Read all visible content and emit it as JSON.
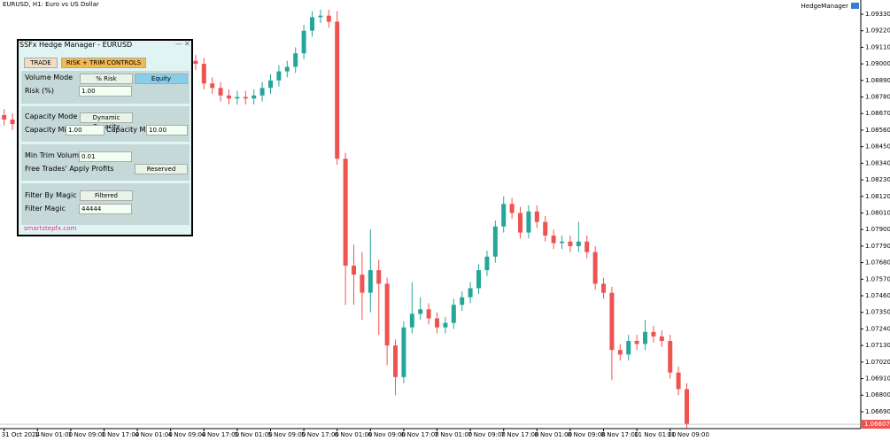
{
  "header": {
    "symbol_info": "EURUSD, H1:  Euro vs US Dollar",
    "expert": "HedgeManager"
  },
  "chart_data": {
    "type": "candlestick",
    "up_color": "#26a69a",
    "down_color": "#ef5350",
    "grid": false,
    "xlim": [
      -0.5,
      102.9
    ],
    "ylim": [
      1.06578,
      1.09424
    ],
    "xticks": [
      {
        "value": 0,
        "label": "31 Oct 2024"
      },
      {
        "value": 4,
        "label": "1 Nov 01:00"
      },
      {
        "value": 8,
        "label": "1 Nov 09:00"
      },
      {
        "value": 12,
        "label": "1 Nov 17:00"
      },
      {
        "value": 16,
        "label": "4 Nov 01:00"
      },
      {
        "value": 20,
        "label": "4 Nov 09:00"
      },
      {
        "value": 24,
        "label": "4 Nov 17:00"
      },
      {
        "value": 28,
        "label": "5 Nov 01:00"
      },
      {
        "value": 32,
        "label": "5 Nov 09:00"
      },
      {
        "value": 36,
        "label": "5 Nov 17:00"
      },
      {
        "value": 40,
        "label": "6 Nov 01:00"
      },
      {
        "value": 44,
        "label": "6 Nov 09:00"
      },
      {
        "value": 48,
        "label": "6 Nov 17:00"
      },
      {
        "value": 52,
        "label": "7 Nov 01:00"
      },
      {
        "value": 56,
        "label": "7 Nov 09:00"
      },
      {
        "value": 60,
        "label": "7 Nov 17:00"
      },
      {
        "value": 64,
        "label": "8 Nov 01:00"
      },
      {
        "value": 68,
        "label": "8 Nov 09:00"
      },
      {
        "value": 72,
        "label": "8 Nov 17:00"
      },
      {
        "value": 76,
        "label": "11 Nov 01:00"
      },
      {
        "value": 80,
        "label": "11 Nov 09:00"
      }
    ],
    "yticks": [
      {
        "value": 1.0933,
        "label": "1.09330"
      },
      {
        "value": 1.0922,
        "label": "1.09220"
      },
      {
        "value": 1.0911,
        "label": "1.09110"
      },
      {
        "value": 1.09,
        "label": "1.09000"
      },
      {
        "value": 1.0889,
        "label": "1.08890"
      },
      {
        "value": 1.0878,
        "label": "1.08780"
      },
      {
        "value": 1.0867,
        "label": "1.08670"
      },
      {
        "value": 1.0856,
        "label": "1.08560"
      },
      {
        "value": 1.0845,
        "label": "1.08450"
      },
      {
        "value": 1.0834,
        "label": "1.08340"
      },
      {
        "value": 1.0823,
        "label": "1.08230"
      },
      {
        "value": 1.0812,
        "label": "1.08120"
      },
      {
        "value": 1.0801,
        "label": "1.08010"
      },
      {
        "value": 1.079,
        "label": "1.07900"
      },
      {
        "value": 1.0779,
        "label": "1.07790"
      },
      {
        "value": 1.0768,
        "label": "1.07680"
      },
      {
        "value": 1.0757,
        "label": "1.07570"
      },
      {
        "value": 1.0746,
        "label": "1.07460"
      },
      {
        "value": 1.0735,
        "label": "1.07350"
      },
      {
        "value": 1.0724,
        "label": "1.07240"
      },
      {
        "value": 1.0713,
        "label": "1.07130"
      },
      {
        "value": 1.0702,
        "label": "1.07020"
      },
      {
        "value": 1.0691,
        "label": "1.06910"
      },
      {
        "value": 1.068,
        "label": "1.06800"
      },
      {
        "value": 1.0669,
        "label": "1.06690"
      }
    ],
    "last_price": {
      "value": 1.06607,
      "label": "1.06607"
    },
    "open": [
      1.0866,
      1.0863,
      1.086,
      1.0866,
      1.0863,
      1.0869,
      1.0875,
      1.0881,
      1.0884,
      1.0887,
      1.0889,
      1.0892,
      1.0895,
      1.0897,
      1.0898,
      1.09,
      1.0901,
      1.0902,
      1.09,
      1.0901,
      1.0898,
      1.09,
      1.0901,
      1.0902,
      1.09,
      1.0887,
      1.0884,
      1.0879,
      1.0877,
      1.0878,
      1.0877,
      1.0879,
      1.0884,
      1.0889,
      1.0895,
      1.0898,
      1.0907,
      1.0922,
      1.0931,
      1.0932,
      1.0928,
      1.0837,
      1.0766,
      1.076,
      1.0748,
      1.0763,
      1.0754,
      1.0713,
      1.0692,
      1.0725,
      1.0734,
      1.0737,
      1.0731,
      1.0725,
      1.0728,
      1.074,
      1.0745,
      1.0751,
      1.0763,
      1.0772,
      1.0792,
      1.0807,
      1.0801,
      1.0788,
      1.0802,
      1.0795,
      1.0786,
      1.0781,
      1.0782,
      1.0779,
      1.0782,
      1.0775,
      1.0754,
      1.0748,
      1.071,
      1.0707,
      1.0716,
      1.0714,
      1.0722,
      1.0719,
      1.0716,
      1.0695,
      1.0684
    ],
    "high": [
      1.087,
      1.0867,
      1.087,
      1.087,
      1.0873,
      1.0879,
      1.0885,
      1.0888,
      1.0891,
      1.0893,
      1.0896,
      1.0899,
      1.0901,
      1.0902,
      1.0904,
      1.0905,
      1.0906,
      1.0906,
      1.0905,
      1.0905,
      1.0904,
      1.0905,
      1.0906,
      1.0906,
      1.0904,
      1.0891,
      1.0888,
      1.0883,
      1.0882,
      1.0882,
      1.0883,
      1.0888,
      1.0893,
      1.0899,
      1.0902,
      1.0911,
      1.0926,
      1.0935,
      1.0936,
      1.0936,
      1.0935,
      1.0841,
      1.078,
      1.0775,
      1.079,
      1.077,
      1.0758,
      1.0717,
      1.0729,
      1.0755,
      1.0745,
      1.0741,
      1.0735,
      1.0732,
      1.0744,
      1.0749,
      1.0755,
      1.0767,
      1.0776,
      1.0796,
      1.0812,
      1.0811,
      1.0805,
      1.0806,
      1.0806,
      1.0799,
      1.079,
      1.0786,
      1.0786,
      1.0795,
      1.0786,
      1.0779,
      1.0758,
      1.0752,
      1.0714,
      1.072,
      1.072,
      1.073,
      1.0726,
      1.0723,
      1.072,
      1.0699,
      1.0688
    ],
    "low": [
      1.0859,
      1.0856,
      1.0856,
      1.0859,
      1.0859,
      1.0865,
      1.0871,
      1.0877,
      1.088,
      1.0883,
      1.0885,
      1.0888,
      1.0891,
      1.0893,
      1.0894,
      1.0896,
      1.0897,
      1.0896,
      1.0896,
      1.0894,
      1.0894,
      1.0896,
      1.0897,
      1.0896,
      1.0883,
      1.088,
      1.0875,
      1.0873,
      1.0873,
      1.0873,
      1.0873,
      1.0875,
      1.088,
      1.0885,
      1.0891,
      1.0894,
      1.0903,
      1.0918,
      1.0927,
      1.0924,
      1.0833,
      1.074,
      1.074,
      1.073,
      1.0735,
      1.072,
      1.07,
      1.068,
      1.0688,
      1.0721,
      1.073,
      1.0727,
      1.0721,
      1.0721,
      1.0724,
      1.0736,
      1.0741,
      1.0747,
      1.0759,
      1.0768,
      1.0788,
      1.0797,
      1.0784,
      1.0784,
      1.0791,
      1.0782,
      1.0777,
      1.0777,
      1.0775,
      1.0775,
      1.0771,
      1.075,
      1.0744,
      1.069,
      1.0703,
      1.0703,
      1.071,
      1.071,
      1.0715,
      1.0712,
      1.0691,
      1.068,
      1.0658
    ],
    "close": [
      1.0863,
      1.086,
      1.0866,
      1.0863,
      1.0869,
      1.0875,
      1.0881,
      1.0884,
      1.0887,
      1.0889,
      1.0892,
      1.0895,
      1.0897,
      1.0898,
      1.09,
      1.0901,
      1.0902,
      1.09,
      1.0901,
      1.0898,
      1.09,
      1.0901,
      1.0902,
      1.09,
      1.0887,
      1.0884,
      1.0879,
      1.0877,
      1.0878,
      1.0877,
      1.0879,
      1.0884,
      1.0889,
      1.0895,
      1.0898,
      1.0907,
      1.0922,
      1.0931,
      1.0932,
      1.0928,
      1.0837,
      1.0766,
      1.076,
      1.0748,
      1.0763,
      1.0754,
      1.0713,
      1.0692,
      1.0725,
      1.0734,
      1.0737,
      1.0731,
      1.0725,
      1.0728,
      1.074,
      1.0745,
      1.0751,
      1.0763,
      1.0772,
      1.0792,
      1.0807,
      1.0801,
      1.0788,
      1.0802,
      1.0795,
      1.0786,
      1.0781,
      1.0782,
      1.0779,
      1.0782,
      1.0775,
      1.0754,
      1.0748,
      1.071,
      1.0707,
      1.0716,
      1.0714,
      1.0722,
      1.0719,
      1.0716,
      1.0695,
      1.0684,
      1.0661
    ]
  },
  "panel": {
    "title": "SSFx Hedge Manager - EURUSD",
    "tabs": [
      "TRADE",
      "RISK + TRIM CONTROLS"
    ],
    "volume_mode": {
      "label": "Volume Mode",
      "options": [
        "% Risk",
        "Equity"
      ]
    },
    "risk": {
      "label": "Risk (%)",
      "value": "1.00"
    },
    "capacity_mode": {
      "label": "Capacity Mode",
      "value": "Dynamic Capacity"
    },
    "capacity_min": {
      "label": "Capacity Min",
      "value": "1.00"
    },
    "capacity_max": {
      "label": "Capacity Max",
      "value": "10.00"
    },
    "min_trim_volume": {
      "label": "Min Trim Volume",
      "value": "0.01"
    },
    "free_trades": {
      "label": "Free Trades' Apply Profits",
      "value": "Reserved"
    },
    "filter_by_magic": {
      "label": "Filter By Magic",
      "value": "Filtered"
    },
    "filter_magic": {
      "label": "Filter Magic",
      "value": "44444"
    },
    "footer": "smartstepfx.com"
  }
}
